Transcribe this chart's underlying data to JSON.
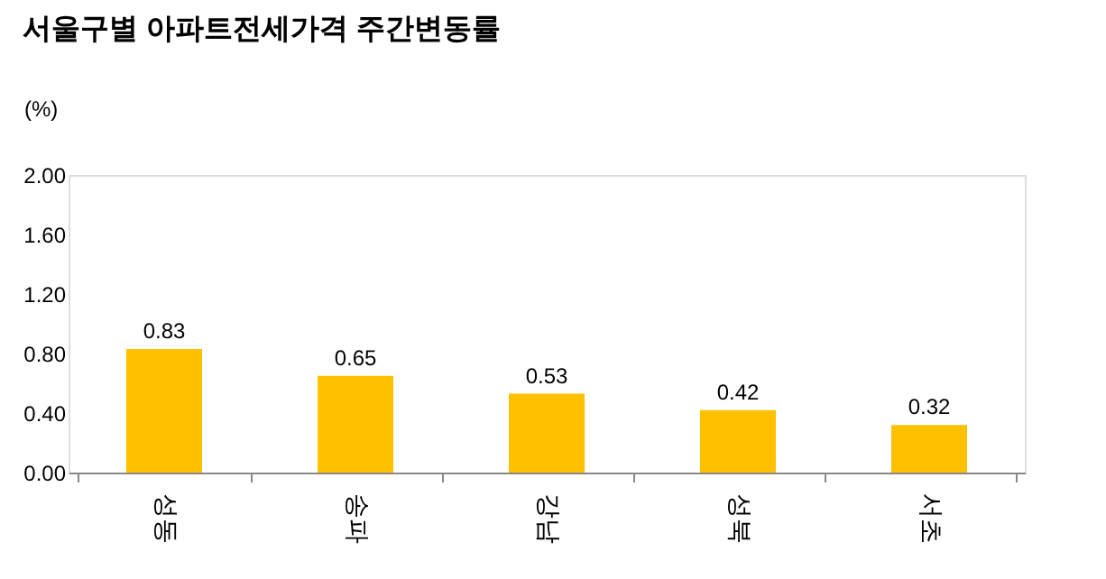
{
  "chart_data": {
    "type": "bar",
    "title": "서울구별 아파트전세가격 주간변동률",
    "ylabel": "(%)",
    "categories": [
      "성동",
      "송파",
      "강남",
      "성북",
      "서초"
    ],
    "values": [
      0.83,
      0.65,
      0.53,
      0.42,
      0.32
    ],
    "color": "#ffc000",
    "ylim": [
      0,
      2.0
    ],
    "yticks": [
      {
        "value": 0,
        "label": "0.00"
      },
      {
        "value": 0.4,
        "label": "0.40"
      },
      {
        "value": 0.8,
        "label": "0.80"
      },
      {
        "value": 1.2,
        "label": "1.20"
      },
      {
        "value": 1.6,
        "label": "1.60"
      },
      {
        "value": 2.0,
        "label": "2.00"
      }
    ],
    "data_labels": true,
    "grid": false
  }
}
